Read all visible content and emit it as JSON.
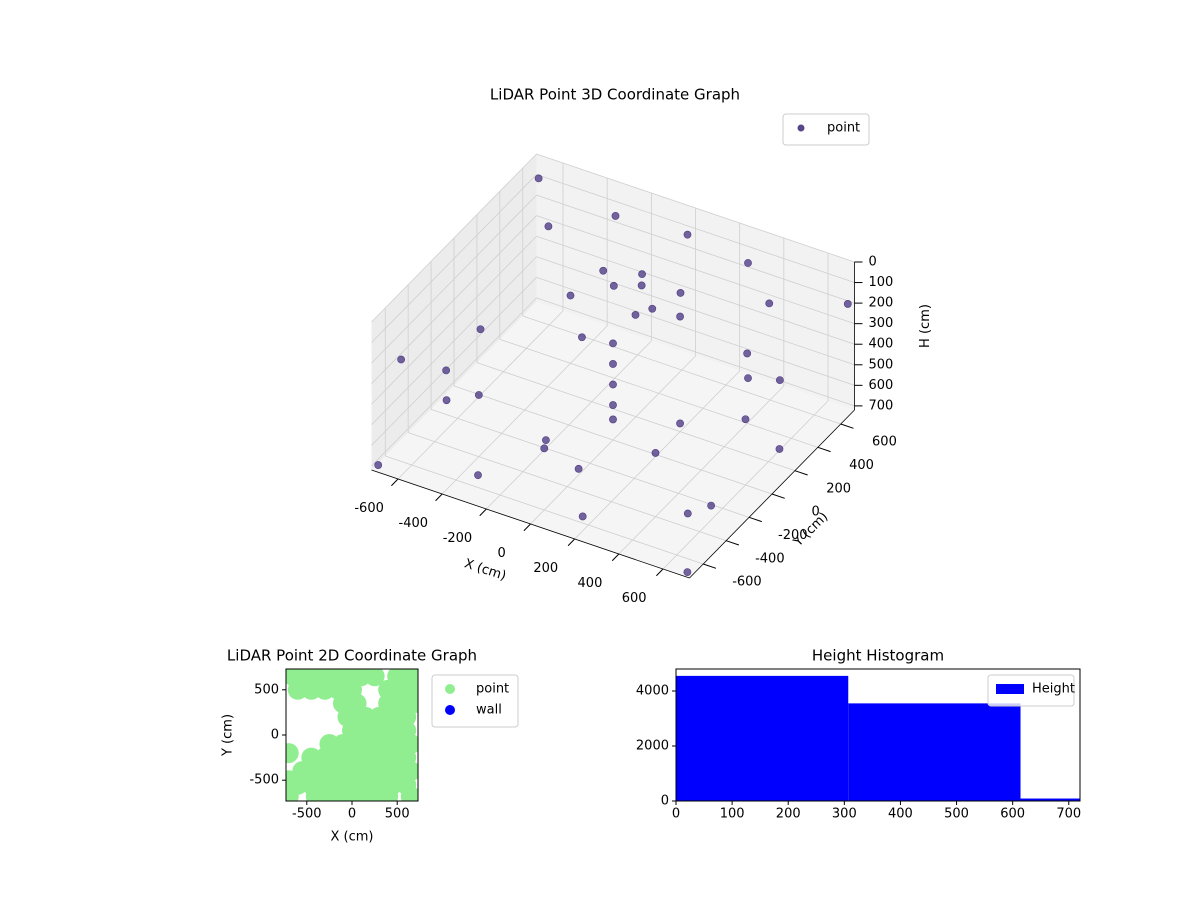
{
  "chart_data": [
    {
      "type": "scatter3d",
      "title": "LiDAR Point 3D Coordinate Graph",
      "xlabel": "X (cm)",
      "ylabel": "Y (cm)",
      "zlabel": "H (cm)",
      "series": [
        {
          "name": "point",
          "color": "#46327e",
          "x": [
            -100,
            0,
            100,
            -200,
            150,
            50,
            -50,
            200,
            0,
            0,
            0,
            0,
            0,
            -300,
            0,
            300,
            500,
            -500,
            -600,
            -400,
            0,
            400,
            600,
            400,
            -400,
            -600,
            600,
            -650,
            -300,
            200,
            600,
            650,
            300,
            -400,
            -200,
            200,
            0,
            -700,
            700,
            700,
            -700,
            650,
            -700
          ],
          "y": [
            200,
            250,
            150,
            300,
            300,
            100,
            350,
            200,
            0,
            0,
            0,
            0,
            0,
            600,
            650,
            600,
            400,
            400,
            0,
            -400,
            -600,
            -400,
            0,
            400,
            400,
            -300,
            300,
            -200,
            -600,
            -650,
            -300,
            200,
            600,
            500,
            -200,
            200,
            -300,
            -700,
            -700,
            700,
            700,
            -600,
            -500
          ],
          "z": [
            120,
            110,
            130,
            140,
            120,
            150,
            130,
            160,
            250,
            350,
            450,
            550,
            620,
            80,
            90,
            90,
            100,
            90,
            400,
            420,
            420,
            410,
            400,
            380,
            390,
            430,
            380,
            650,
            660,
            650,
            650,
            640,
            650,
            650,
            680,
            680,
            690,
            700,
            710,
            200,
            100,
            500,
            300
          ]
        }
      ],
      "xlim": [
        -720,
        720
      ],
      "ylim": [
        -720,
        720
      ],
      "zlim": [
        0,
        720
      ],
      "z_inverted": true,
      "xticks": [
        -600,
        -400,
        -200,
        0,
        200,
        400,
        600
      ],
      "yticks": [
        -600,
        -400,
        -200,
        0,
        200,
        400,
        600
      ],
      "zticks": [
        0,
        100,
        200,
        300,
        400,
        500,
        600,
        700
      ],
      "grid": true,
      "legend": "upper right"
    },
    {
      "type": "scatter",
      "title": "LiDAR Point 2D Coordinate Graph",
      "xlabel": "X (cm)",
      "ylabel": "Y (cm)",
      "series": [
        {
          "name": "point",
          "color": "#90ee90",
          "x": [
            -650,
            -500,
            -350,
            -200,
            -50,
            100,
            250,
            500,
            650,
            -600,
            -450,
            -300,
            -150,
            0,
            400,
            550,
            680,
            -100,
            50,
            400,
            550,
            680,
            -50,
            150,
            300,
            450,
            600,
            0,
            150,
            300,
            450,
            600,
            -250,
            -100,
            50,
            200,
            350,
            500,
            650,
            -450,
            -300,
            -150,
            0,
            150,
            300,
            450,
            600,
            -550,
            -400,
            -250,
            -100,
            50,
            200,
            350,
            500,
            650,
            -600,
            -450,
            -300,
            -150,
            0,
            150,
            300,
            450,
            600,
            -700,
            -400,
            -200,
            0,
            200,
            400,
            650,
            -700,
            -700
          ],
          "y": [
            650,
            650,
            650,
            650,
            650,
            650,
            650,
            650,
            650,
            500,
            500,
            500,
            500,
            500,
            500,
            500,
            500,
            350,
            350,
            350,
            350,
            350,
            200,
            200,
            200,
            200,
            200,
            50,
            50,
            50,
            50,
            50,
            -100,
            -100,
            -100,
            -100,
            -100,
            -100,
            -100,
            -250,
            -250,
            -250,
            -250,
            -250,
            -250,
            -250,
            -250,
            -400,
            -400,
            -400,
            -400,
            -400,
            -400,
            -400,
            -400,
            -400,
            -550,
            -550,
            -550,
            -550,
            -550,
            -550,
            -550,
            -550,
            -550,
            -680,
            -680,
            -680,
            -680,
            -680,
            -680,
            -680,
            -200,
            -500
          ]
        },
        {
          "name": "wall",
          "color": "#0000ff",
          "x": [],
          "y": []
        }
      ],
      "xlim": [
        -730,
        730
      ],
      "ylim": [
        -730,
        730
      ],
      "xticks": [
        -500,
        0,
        500
      ],
      "yticks": [
        -500,
        0,
        500
      ],
      "legend": "outside right"
    },
    {
      "type": "histogram",
      "title": "Height Histogram",
      "name": "Height",
      "color": "#0000ff",
      "bins": [
        0,
        307,
        614,
        720
      ],
      "counts": [
        4550,
        3550,
        90
      ],
      "xlim": [
        0,
        720
      ],
      "ylim": [
        0,
        4800
      ],
      "xticks": [
        0,
        100,
        200,
        300,
        400,
        500,
        600,
        700
      ],
      "yticks": [
        0,
        2000,
        4000
      ],
      "legend": "upper right"
    }
  ]
}
